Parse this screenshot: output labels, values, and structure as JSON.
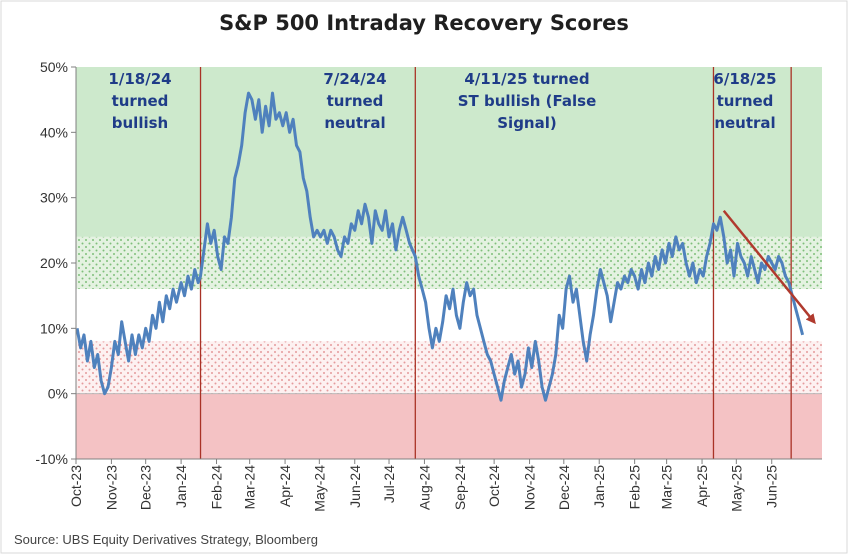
{
  "chart_data": {
    "type": "line",
    "title": "S&P 500 Intraday Recovery Scores",
    "source": "Source: UBS Equity Derivatives Strategy, Bloomberg",
    "y_axis": {
      "min": -10,
      "max": 50,
      "ticks": [
        -10,
        0,
        10,
        20,
        30,
        40,
        50
      ],
      "tick_labels": [
        "-10%",
        "0%",
        "10%",
        "20%",
        "30%",
        "40%",
        "50%"
      ]
    },
    "x_axis": {
      "start": "2023-10-01",
      "end": "2025-07-15",
      "tick_dates": [
        "2023-10-01",
        "2023-11-01",
        "2023-12-01",
        "2024-01-01",
        "2024-02-01",
        "2024-03-01",
        "2024-04-01",
        "2024-05-01",
        "2024-06-01",
        "2024-07-01",
        "2024-08-01",
        "2024-09-01",
        "2024-10-01",
        "2024-11-01",
        "2024-12-01",
        "2025-01-01",
        "2025-02-01",
        "2025-03-01",
        "2025-04-01",
        "2025-05-01",
        "2025-06-01"
      ],
      "tick_labels": [
        "Oct-23",
        "Nov-23",
        "Dec-23",
        "Jan-24",
        "Feb-24",
        "Mar-24",
        "Apr-24",
        "May-24",
        "Jun-24",
        "Jul-24",
        "Aug-24",
        "Sep-24",
        "Oct-24",
        "Nov-24",
        "Dec-24",
        "Jan-25",
        "Feb-25",
        "Mar-25",
        "Apr-25",
        "May-25",
        "Jun-25"
      ]
    },
    "zones": [
      {
        "from": 24,
        "to": 50,
        "fill": "#cde9cc",
        "pattern": "none"
      },
      {
        "from": 16,
        "to": 24,
        "fill": "#e4f2e1",
        "pattern": "green-dots"
      },
      {
        "from": 8,
        "to": 16,
        "fill": "#ffffff",
        "pattern": "none"
      },
      {
        "from": 0,
        "to": 8,
        "fill": "#fbeaea",
        "pattern": "red-dots"
      },
      {
        "from": -10,
        "to": 0,
        "fill": "#f4c2c4",
        "pattern": "none"
      }
    ],
    "events": [
      {
        "date": "2024-01-18",
        "label": [
          "1/18/24",
          "turned",
          "bullish"
        ]
      },
      {
        "date": "2024-07-24",
        "label": [
          "7/24/24",
          "turned",
          "neutral"
        ]
      },
      {
        "date": "2025-04-11",
        "label": [
          "4/11/25 turned",
          "ST bullish (False",
          "Signal)"
        ]
      },
      {
        "date": "2025-06-18",
        "label": [
          "6/18/25",
          "turned",
          "neutral"
        ]
      }
    ],
    "colors": {
      "line": "#4f81bd",
      "event_line": "#a93226",
      "trend_arrow": "#b03a2e",
      "annotation": "#1f3c88"
    },
    "trend_arrow": {
      "from": {
        "date": "2025-04-20",
        "y": 28
      },
      "to": {
        "date": "2025-07-08",
        "y": 11
      }
    },
    "series": [
      {
        "values": [
          [
            "2023-10-02",
            10
          ],
          [
            "2023-10-05",
            7
          ],
          [
            "2023-10-08",
            9
          ],
          [
            "2023-10-11",
            5
          ],
          [
            "2023-10-14",
            8
          ],
          [
            "2023-10-17",
            4
          ],
          [
            "2023-10-20",
            6
          ],
          [
            "2023-10-23",
            2
          ],
          [
            "2023-10-26",
            0
          ],
          [
            "2023-10-29",
            1
          ],
          [
            "2023-11-01",
            4
          ],
          [
            "2023-11-04",
            8
          ],
          [
            "2023-11-07",
            6
          ],
          [
            "2023-11-10",
            11
          ],
          [
            "2023-11-13",
            8
          ],
          [
            "2023-11-16",
            5
          ],
          [
            "2023-11-19",
            9
          ],
          [
            "2023-11-22",
            6
          ],
          [
            "2023-11-25",
            9
          ],
          [
            "2023-11-28",
            7
          ],
          [
            "2023-12-01",
            10
          ],
          [
            "2023-12-04",
            8
          ],
          [
            "2023-12-07",
            12
          ],
          [
            "2023-12-10",
            10
          ],
          [
            "2023-12-13",
            14
          ],
          [
            "2023-12-16",
            11
          ],
          [
            "2023-12-19",
            15
          ],
          [
            "2023-12-22",
            13
          ],
          [
            "2023-12-25",
            16
          ],
          [
            "2023-12-28",
            14
          ],
          [
            "2024-01-01",
            17
          ],
          [
            "2024-01-04",
            15
          ],
          [
            "2024-01-07",
            18
          ],
          [
            "2024-01-10",
            16
          ],
          [
            "2024-01-13",
            19
          ],
          [
            "2024-01-16",
            17
          ],
          [
            "2024-01-18",
            18
          ],
          [
            "2024-01-21",
            22
          ],
          [
            "2024-01-24",
            26
          ],
          [
            "2024-01-27",
            23
          ],
          [
            "2024-01-30",
            25
          ],
          [
            "2024-02-02",
            21
          ],
          [
            "2024-02-05",
            19
          ],
          [
            "2024-02-08",
            24
          ],
          [
            "2024-02-11",
            23
          ],
          [
            "2024-02-14",
            27
          ],
          [
            "2024-02-17",
            33
          ],
          [
            "2024-02-20",
            35
          ],
          [
            "2024-02-23",
            38
          ],
          [
            "2024-02-26",
            43
          ],
          [
            "2024-02-29",
            46
          ],
          [
            "2024-03-03",
            45
          ],
          [
            "2024-03-06",
            42
          ],
          [
            "2024-03-09",
            45
          ],
          [
            "2024-03-12",
            40
          ],
          [
            "2024-03-15",
            44
          ],
          [
            "2024-03-18",
            41
          ],
          [
            "2024-03-21",
            46
          ],
          [
            "2024-03-24",
            42
          ],
          [
            "2024-03-27",
            43
          ],
          [
            "2024-03-30",
            41
          ],
          [
            "2024-04-02",
            43
          ],
          [
            "2024-04-05",
            40
          ],
          [
            "2024-04-08",
            42
          ],
          [
            "2024-04-11",
            38
          ],
          [
            "2024-04-14",
            37
          ],
          [
            "2024-04-17",
            33
          ],
          [
            "2024-04-20",
            31
          ],
          [
            "2024-04-23",
            27
          ],
          [
            "2024-04-26",
            24
          ],
          [
            "2024-04-29",
            25
          ],
          [
            "2024-05-02",
            24
          ],
          [
            "2024-05-05",
            25
          ],
          [
            "2024-05-08",
            23
          ],
          [
            "2024-05-11",
            25
          ],
          [
            "2024-05-14",
            24
          ],
          [
            "2024-05-17",
            22
          ],
          [
            "2024-05-20",
            21
          ],
          [
            "2024-05-23",
            24
          ],
          [
            "2024-05-26",
            23
          ],
          [
            "2024-05-29",
            26
          ],
          [
            "2024-06-01",
            25
          ],
          [
            "2024-06-04",
            28
          ],
          [
            "2024-06-07",
            26
          ],
          [
            "2024-06-10",
            29
          ],
          [
            "2024-06-13",
            27
          ],
          [
            "2024-06-16",
            23
          ],
          [
            "2024-06-19",
            28
          ],
          [
            "2024-06-22",
            26
          ],
          [
            "2024-06-25",
            25
          ],
          [
            "2024-06-28",
            28
          ],
          [
            "2024-07-01",
            24
          ],
          [
            "2024-07-04",
            26
          ],
          [
            "2024-07-07",
            22
          ],
          [
            "2024-07-10",
            25
          ],
          [
            "2024-07-13",
            27
          ],
          [
            "2024-07-16",
            25
          ],
          [
            "2024-07-19",
            23
          ],
          [
            "2024-07-24",
            21
          ],
          [
            "2024-07-27",
            18
          ],
          [
            "2024-07-30",
            16
          ],
          [
            "2024-08-02",
            14
          ],
          [
            "2024-08-05",
            10
          ],
          [
            "2024-08-08",
            7
          ],
          [
            "2024-08-11",
            10
          ],
          [
            "2024-08-14",
            8
          ],
          [
            "2024-08-17",
            11
          ],
          [
            "2024-08-20",
            15
          ],
          [
            "2024-08-23",
            13
          ],
          [
            "2024-08-26",
            16
          ],
          [
            "2024-08-29",
            12
          ],
          [
            "2024-09-01",
            10
          ],
          [
            "2024-09-04",
            14
          ],
          [
            "2024-09-07",
            17
          ],
          [
            "2024-09-10",
            15
          ],
          [
            "2024-09-13",
            16
          ],
          [
            "2024-09-16",
            12
          ],
          [
            "2024-09-19",
            10
          ],
          [
            "2024-09-22",
            8
          ],
          [
            "2024-09-25",
            6
          ],
          [
            "2024-09-28",
            5
          ],
          [
            "2024-10-01",
            3
          ],
          [
            "2024-10-04",
            1
          ],
          [
            "2024-10-07",
            -1
          ],
          [
            "2024-10-10",
            2
          ],
          [
            "2024-10-13",
            4
          ],
          [
            "2024-10-16",
            6
          ],
          [
            "2024-10-19",
            3
          ],
          [
            "2024-10-22",
            5
          ],
          [
            "2024-10-25",
            1
          ],
          [
            "2024-10-28",
            3
          ],
          [
            "2024-10-31",
            7
          ],
          [
            "2024-11-03",
            4
          ],
          [
            "2024-11-06",
            8
          ],
          [
            "2024-11-09",
            5
          ],
          [
            "2024-11-12",
            1
          ],
          [
            "2024-11-15",
            -1
          ],
          [
            "2024-11-18",
            1
          ],
          [
            "2024-11-21",
            3
          ],
          [
            "2024-11-24",
            6
          ],
          [
            "2024-11-27",
            12
          ],
          [
            "2024-11-30",
            10
          ],
          [
            "2024-12-03",
            16
          ],
          [
            "2024-12-06",
            18
          ],
          [
            "2024-12-09",
            14
          ],
          [
            "2024-12-12",
            16
          ],
          [
            "2024-12-15",
            12
          ],
          [
            "2024-12-18",
            8
          ],
          [
            "2024-12-21",
            5
          ],
          [
            "2024-12-24",
            9
          ],
          [
            "2024-12-27",
            12
          ],
          [
            "2024-12-30",
            16
          ],
          [
            "2025-01-02",
            19
          ],
          [
            "2025-01-05",
            17
          ],
          [
            "2025-01-08",
            15
          ],
          [
            "2025-01-11",
            11
          ],
          [
            "2025-01-14",
            14
          ],
          [
            "2025-01-17",
            17
          ],
          [
            "2025-01-20",
            16
          ],
          [
            "2025-01-23",
            18
          ],
          [
            "2025-01-26",
            17
          ],
          [
            "2025-01-29",
            19
          ],
          [
            "2025-02-01",
            18
          ],
          [
            "2025-02-04",
            16
          ],
          [
            "2025-02-07",
            19
          ],
          [
            "2025-02-10",
            17
          ],
          [
            "2025-02-13",
            20
          ],
          [
            "2025-02-16",
            18
          ],
          [
            "2025-02-19",
            21
          ],
          [
            "2025-02-22",
            19
          ],
          [
            "2025-02-25",
            22
          ],
          [
            "2025-02-28",
            20
          ],
          [
            "2025-03-03",
            23
          ],
          [
            "2025-03-06",
            21
          ],
          [
            "2025-03-09",
            24
          ],
          [
            "2025-03-12",
            22
          ],
          [
            "2025-03-15",
            23
          ],
          [
            "2025-03-18",
            20
          ],
          [
            "2025-03-21",
            18
          ],
          [
            "2025-03-24",
            20
          ],
          [
            "2025-03-27",
            17
          ],
          [
            "2025-03-30",
            19
          ],
          [
            "2025-04-02",
            18
          ],
          [
            "2025-04-05",
            21
          ],
          [
            "2025-04-08",
            23
          ],
          [
            "2025-04-11",
            26
          ],
          [
            "2025-04-14",
            25
          ],
          [
            "2025-04-17",
            27
          ],
          [
            "2025-04-20",
            24
          ],
          [
            "2025-04-23",
            20
          ],
          [
            "2025-04-26",
            22
          ],
          [
            "2025-04-29",
            18
          ],
          [
            "2025-05-02",
            23
          ],
          [
            "2025-05-05",
            21
          ],
          [
            "2025-05-08",
            20
          ],
          [
            "2025-05-11",
            18
          ],
          [
            "2025-05-14",
            21
          ],
          [
            "2025-05-17",
            19
          ],
          [
            "2025-05-20",
            17
          ],
          [
            "2025-05-23",
            20
          ],
          [
            "2025-05-26",
            19
          ],
          [
            "2025-05-29",
            21
          ],
          [
            "2025-06-01",
            20
          ],
          [
            "2025-06-04",
            19
          ],
          [
            "2025-06-07",
            21
          ],
          [
            "2025-06-10",
            20
          ],
          [
            "2025-06-13",
            18
          ],
          [
            "2025-06-16",
            17
          ],
          [
            "2025-06-19",
            15
          ],
          [
            "2025-06-22",
            13
          ],
          [
            "2025-06-25",
            11
          ],
          [
            "2025-06-28",
            9
          ]
        ]
      }
    ]
  }
}
